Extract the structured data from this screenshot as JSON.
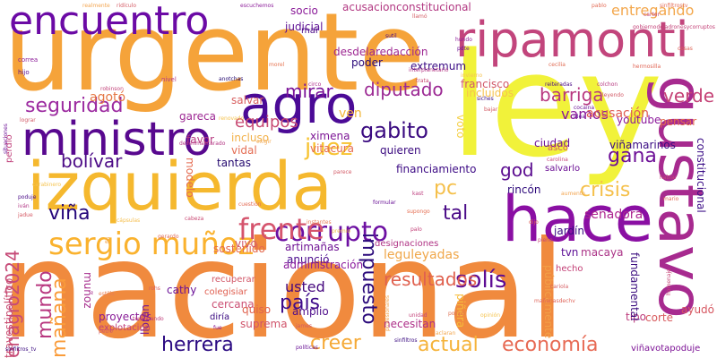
{
  "words": [
    {
      "text": "nacional",
      "color": "#f08a3e"
    },
    {
      "text": "urgente",
      "color": "#f5a33a"
    },
    {
      "text": "ley",
      "color": "#f1f23a"
    },
    {
      "text": "izquierda",
      "color": "#f5b82e"
    },
    {
      "text": "hace",
      "color": "#8a0fa3"
    },
    {
      "text": "gustavo",
      "color": "#a72a8f"
    },
    {
      "text": "ripamonti",
      "color": "#c2457c"
    },
    {
      "text": "encuentro",
      "color": "#6b0aa5"
    },
    {
      "text": "agro",
      "color": "#4b0a96"
    },
    {
      "text": "ministro",
      "color": "#58088f"
    },
    {
      "text": "sergio muñoz",
      "color": "#fab22e"
    },
    {
      "text": "corrupto",
      "color": "#6d10a2"
    },
    {
      "text": "frente",
      "color": "#d5546d"
    },
    {
      "text": "seguridad",
      "color": "#9c2aa0"
    },
    {
      "text": "mundo",
      "color": "#b8377f"
    },
    {
      "text": "mañana",
      "color": "#fa9c3a"
    },
    {
      "text": "enagro2024",
      "color": "#c64a77"
    },
    {
      "text": "viña",
      "color": "#25067b"
    },
    {
      "text": "herrera",
      "color": "#2b0a82"
    },
    {
      "text": "creer",
      "color": "#f5a936"
    },
    {
      "text": "actual",
      "color": "#f5b33a"
    },
    {
      "text": "economía",
      "color": "#e76a54"
    },
    {
      "text": "solís",
      "color": "#5d0c94"
    },
    {
      "text": "país",
      "color": "#3f0b8b"
    },
    {
      "text": "impuesto",
      "color": "#2b0a7b"
    },
    {
      "text": "juez",
      "color": "#f7c332"
    },
    {
      "text": "gabito",
      "color": "#3a0a80"
    },
    {
      "text": "diputado",
      "color": "#9c2a94"
    },
    {
      "text": "mirar",
      "color": "#7a1298"
    },
    {
      "text": "barriga",
      "color": "#b8377f"
    },
    {
      "text": "verde",
      "color": "#c54276"
    },
    {
      "text": "crisis",
      "color": "#f5c04b"
    },
    {
      "text": "gana",
      "color": "#6d0f97"
    },
    {
      "text": "god",
      "color": "#5a0b8f"
    },
    {
      "text": "pc",
      "color": "#f5c04b"
    },
    {
      "text": "tal",
      "color": "#4a0a87"
    },
    {
      "text": "bolívar",
      "color": "#4d0c87"
    },
    {
      "text": "usted",
      "color": "#46087e"
    },
    {
      "text": "resultados",
      "color": "#e0614f"
    },
    {
      "text": "vamos",
      "color": "#8a1799"
    },
    {
      "text": "entregando",
      "color": "#f3a74c"
    },
    {
      "text": "equipos",
      "color": "#c84a73"
    },
    {
      "text": "salvar",
      "color": "#d86060"
    },
    {
      "text": "agotó",
      "color": "#e57846"
    },
    {
      "text": "ven",
      "color": "#f2b738"
    },
    {
      "text": "senadora",
      "color": "#ad2790"
    },
    {
      "text": "acusación",
      "color": "#df5c53"
    },
    {
      "text": "youtube",
      "color": "#8c1a9c"
    },
    {
      "text": "viñamarinos",
      "color": "#3a0b83"
    },
    {
      "text": "pensar",
      "color": "#e36d4d"
    },
    {
      "text": "ximena",
      "color": "#7d1796"
    },
    {
      "text": "vitacura",
      "color": "#e56b51"
    },
    {
      "text": "financiamiento",
      "color": "#3d0b85"
    },
    {
      "text": "rincón",
      "color": "#2d097b"
    },
    {
      "text": "jardín",
      "color": "#3a0a83"
    },
    {
      "text": "tvn",
      "color": "#5b0e95"
    },
    {
      "text": "constitucional",
      "color": "#3a0c86"
    },
    {
      "text": "macaya",
      "color": "#ab3387"
    },
    {
      "text": "hecho",
      "color": "#c23d74"
    },
    {
      "text": "anunció",
      "color": "#4a0a8c"
    },
    {
      "text": "artimañas",
      "color": "#701495"
    },
    {
      "text": "administración",
      "color": "#8a1a9d"
    },
    {
      "text": "leguleyadas",
      "color": "#f0a74a"
    },
    {
      "text": "designaciones",
      "color": "#b03485"
    },
    {
      "text": "sostenido",
      "color": "#e4694e"
    },
    {
      "text": "cercana",
      "color": "#cb4f73"
    },
    {
      "text": "vivo",
      "color": "#d2596a"
    },
    {
      "text": "travestipolítico",
      "color": "#c94d70"
    },
    {
      "text": "cathy",
      "color": "#6b1398"
    },
    {
      "text": "muñoz",
      "color": "#a62b8c"
    },
    {
      "text": "lloran",
      "color": "#731597"
    },
    {
      "text": "amplio",
      "color": "#4d0c8a"
    },
    {
      "text": "quiso",
      "color": "#e0634f"
    },
    {
      "text": "suprema",
      "color": "#d0546b"
    },
    {
      "text": "proyectos",
      "color": "#891c97"
    },
    {
      "text": "explotacion",
      "color": "#c0417a"
    },
    {
      "text": "necesitan",
      "color": "#ad2e87"
    },
    {
      "text": "corte",
      "color": "#d85c5f"
    },
    {
      "text": "tipo",
      "color": "#bd3c7c"
    },
    {
      "text": "fundamental",
      "color": "#3a0b7e"
    },
    {
      "text": "ayudó",
      "color": "#d65660"
    },
    {
      "text": "viñavotapoduje",
      "color": "#7d1396"
    },
    {
      "text": "públicamente",
      "color": "#f2a047"
    },
    {
      "text": "piñera",
      "color": "#f7bd3c"
    },
    {
      "text": "voto",
      "color": "#f5d046"
    },
    {
      "text": "ciudad",
      "color": "#6e1199"
    },
    {
      "text": "quieren",
      "color": "#3a0a7f"
    },
    {
      "text": "incluso",
      "color": "#f2b048"
    },
    {
      "text": "vidal",
      "color": "#e46d53"
    },
    {
      "text": "tantas",
      "color": "#23086f"
    },
    {
      "text": "favor",
      "color": "#b73a81"
    },
    {
      "text": "gareca",
      "color": "#9d2893"
    },
    {
      "text": "francisco",
      "color": "#d1596a"
    },
    {
      "text": "incluidos",
      "color": "#f7c24d"
    },
    {
      "text": "extremum",
      "color": "#3a0b84"
    },
    {
      "text": "desdelaredacción",
      "color": "#9d2792"
    },
    {
      "text": "poder",
      "color": "#2a097a"
    },
    {
      "text": "judicial",
      "color": "#5d0f94"
    },
    {
      "text": "socio",
      "color": "#8a1a98"
    },
    {
      "text": "mar",
      "color": "#4d0c88"
    },
    {
      "text": "acusacionconstitucional",
      "color": "#b23882"
    },
    {
      "text": "modelo",
      "color": "#e46a4f"
    },
    {
      "text": "colegisiar",
      "color": "#e06051"
    },
    {
      "text": "recuperar",
      "color": "#d25868"
    },
    {
      "text": "diría",
      "color": "#3a0a80"
    },
    {
      "text": "asco",
      "color": "#d25268"
    },
    {
      "text": "salvarlo",
      "color": "#6d1296"
    },
    {
      "text": "parece",
      "color": "#d35a66"
    },
    {
      "text": "hijo",
      "color": "#5a0f94"
    },
    {
      "text": "correa",
      "color": "#8c1d99"
    },
    {
      "text": "perdió",
      "color": "#c0407b"
    },
    {
      "text": "robinson",
      "color": "#c2437a"
    },
    {
      "text": "nivel",
      "color": "#b53a86"
    },
    {
      "text": "anotchas",
      "color": "#23086f"
    },
    {
      "text": "circo",
      "color": "#ad2e8a"
    },
    {
      "text": "llamó",
      "color": "#d45f67"
    },
    {
      "text": "trata",
      "color": "#c94b72"
    },
    {
      "text": "cecilia",
      "color": "#e06b52"
    },
    {
      "text": "leyendo",
      "color": "#d25a67"
    },
    {
      "text": "colchon",
      "color": "#b73b81"
    },
    {
      "text": "cocaína",
      "color": "#6b1296"
    },
    {
      "text": "siches",
      "color": "#3a0b80"
    },
    {
      "text": "reiteradas",
      "color": "#4a0c88"
    },
    {
      "text": "idea",
      "color": "#5d1093"
    },
    {
      "text": "renovado",
      "color": "#f4c24e"
    },
    {
      "text": "exigir",
      "color": "#f2a850"
    },
    {
      "text": "lograr",
      "color": "#d25b68"
    },
    {
      "text": "situaciones",
      "color": "#6d1397"
    },
    {
      "text": "sutil",
      "color": "#4c0c89"
    },
    {
      "text": "pdte",
      "color": "#6a1497"
    },
    {
      "text": "carter",
      "color": "#c64677"
    },
    {
      "text": "poduje",
      "color": "#4a0c88"
    },
    {
      "text": "iván",
      "color": "#b23684"
    },
    {
      "text": "jadue",
      "color": "#d55a65"
    },
    {
      "text": "cabeza",
      "color": "#c94a74"
    },
    {
      "text": "instantes",
      "color": "#e87b55"
    },
    {
      "text": "formular",
      "color": "#6a1397"
    },
    {
      "text": "kast",
      "color": "#bd3e7e"
    },
    {
      "text": "supongo",
      "color": "#e56e52"
    },
    {
      "text": "palo",
      "color": "#c3437a"
    },
    {
      "text": "pleno",
      "color": "#c64a74"
    },
    {
      "text": "dijo",
      "color": "#de6257"
    },
    {
      "text": "cariola",
      "color": "#d65d62"
    },
    {
      "text": "unidad",
      "color": "#c4437a"
    },
    {
      "text": "polizzi",
      "color": "#e07253"
    },
    {
      "text": "petro",
      "color": "#d35c64"
    },
    {
      "text": "políticas",
      "color": "#6a1497"
    },
    {
      "text": "sinfiltros_tv",
      "color": "#3a0b80"
    },
    {
      "text": "aclaran",
      "color": "#f2a64e"
    },
    {
      "text": "terminando",
      "color": "#c0407c"
    },
    {
      "text": "james",
      "color": "#d35b64"
    },
    {
      "text": "fue",
      "color": "#8c1c99"
    },
    {
      "text": "premio",
      "color": "#f5c451"
    },
    {
      "text": "estilla",
      "color": "#e88055"
    },
    {
      "text": "fin",
      "color": "#f2a74e"
    },
    {
      "text": "rohs",
      "color": "#d85e62"
    },
    {
      "text": "cápsulas",
      "color": "#f5bf4f"
    },
    {
      "text": "gerardo",
      "color": "#e06b56"
    },
    {
      "text": "mañanasdechv",
      "color": "#e0655a"
    },
    {
      "text": "homenaje",
      "color": "#c8487a"
    },
    {
      "text": "escuchemos",
      "color": "#8c1c99"
    },
    {
      "text": "ridículo",
      "color": "#d45b65"
    },
    {
      "text": "realmente",
      "color": "#f2a44e"
    },
    {
      "text": "pablo",
      "color": "#e36c56"
    },
    {
      "text": "sinfiltrostv",
      "color": "#e36c56"
    },
    {
      "text": "gobiernodeladronesycorruptos",
      "color": "#c44379"
    },
    {
      "text": "hundo",
      "color": "#8c1c99"
    },
    {
      "text": "interplanetario",
      "color": "#b53a86"
    },
    {
      "text": "invierno",
      "color": "#f5c451"
    },
    {
      "text": "morel",
      "color": "#e67552"
    },
    {
      "text": "bajar",
      "color": "#d35c64"
    },
    {
      "text": "cosas",
      "color": "#de6455"
    },
    {
      "text": "hermosilla",
      "color": "#e06656"
    },
    {
      "text": "desenmascarado",
      "color": "#b53a86"
    },
    {
      "text": "carolina",
      "color": "#c8487a"
    },
    {
      "text": "sinfiltros",
      "color": "#3a0b80"
    },
    {
      "text": "opinión",
      "color": "#f5c451"
    },
    {
      "text": "profesionales",
      "color": "#f2a54e"
    },
    {
      "text": "hablar",
      "color": "#c8487a"
    },
    {
      "text": "mario",
      "color": "#e06b56"
    },
    {
      "text": "aumento",
      "color": "#f2a44e"
    },
    {
      "text": "cuestión",
      "color": "#e36c56"
    },
    {
      "text": "carabinero",
      "color": "#f5c451"
    }
  ]
}
